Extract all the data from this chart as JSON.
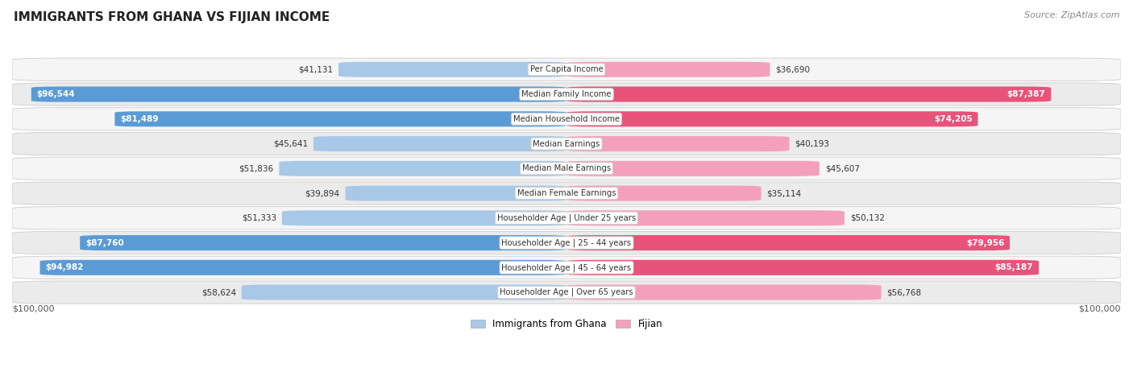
{
  "title": "IMMIGRANTS FROM GHANA VS FIJIAN INCOME",
  "source": "Source: ZipAtlas.com",
  "categories": [
    "Per Capita Income",
    "Median Family Income",
    "Median Household Income",
    "Median Earnings",
    "Median Male Earnings",
    "Median Female Earnings",
    "Householder Age | Under 25 years",
    "Householder Age | 25 - 44 years",
    "Householder Age | 45 - 64 years",
    "Householder Age | Over 65 years"
  ],
  "ghana_values": [
    41131,
    96544,
    81489,
    45641,
    51836,
    39894,
    51333,
    87760,
    94982,
    58624
  ],
  "fijian_values": [
    36690,
    87387,
    74205,
    40193,
    45607,
    35114,
    50132,
    79956,
    85187,
    56768
  ],
  "ghana_labels": [
    "$41,131",
    "$96,544",
    "$81,489",
    "$45,641",
    "$51,836",
    "$39,894",
    "$51,333",
    "$87,760",
    "$94,982",
    "$58,624"
  ],
  "fijian_labels": [
    "$36,690",
    "$87,387",
    "$74,205",
    "$40,193",
    "$45,607",
    "$35,114",
    "$50,132",
    "$79,956",
    "$85,187",
    "$56,768"
  ],
  "ghana_color_light": "#a8c8e8",
  "ghana_color_dark": "#5b9bd5",
  "fijian_color_light": "#f4a0bc",
  "fijian_color_dark": "#e8537a",
  "max_value": 100000,
  "background_color": "#ffffff",
  "row_bg_even": "#f5f5f5",
  "row_bg_odd": "#ebebeb",
  "legend_ghana": "Immigrants from Ghana",
  "legend_fijian": "Fijian",
  "ghana_dark_threshold": 0.6,
  "fijian_dark_threshold": 0.6
}
